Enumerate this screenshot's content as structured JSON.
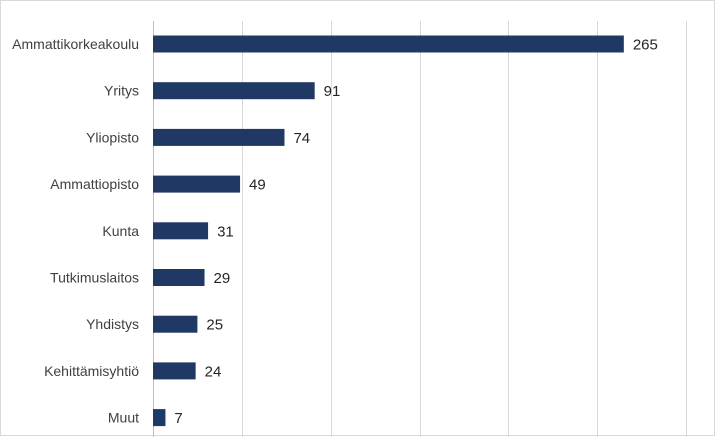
{
  "chart_data": {
    "type": "bar",
    "orientation": "horizontal",
    "categories": [
      "Ammattikorkeakoulu",
      "Yritys",
      "Yliopisto",
      "Ammattiopisto",
      "Kunta",
      "Tutkimuslaitos",
      "Yhdistys",
      "Kehittämisyhtiö",
      "Muut"
    ],
    "values": [
      265,
      91,
      74,
      49,
      31,
      29,
      25,
      24,
      7
    ],
    "xlim": [
      0,
      300
    ],
    "grid": true,
    "data_labels": true,
    "color": "#1f3864"
  }
}
